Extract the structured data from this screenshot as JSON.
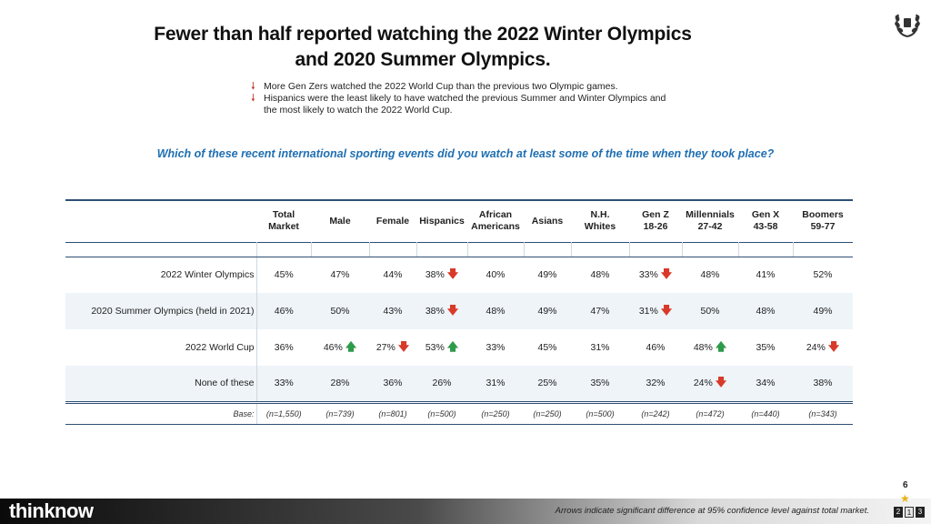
{
  "title_line1": "Fewer than half reported watching the 2022 Winter Olympics",
  "title_line2": "and 2020 Summer Olympics.",
  "bullets": [
    "More Gen Zers watched the 2022 World Cup than the previous two Olympic games.",
    "Hispanics were the least likely to have watched the previous Summer and Winter Olympics and the most likely to watch the 2022 World Cup."
  ],
  "question": "Which of these recent international sporting events did you watch at least some of the time when they took place?",
  "columns": [
    {
      "l1": "Total",
      "l2": "Market"
    },
    {
      "l1": "Male",
      "l2": ""
    },
    {
      "l1": "Female",
      "l2": ""
    },
    {
      "l1": "Hispanics",
      "l2": ""
    },
    {
      "l1": "African",
      "l2": "Americans"
    },
    {
      "l1": "Asians",
      "l2": ""
    },
    {
      "l1": "N.H.",
      "l2": "Whites"
    },
    {
      "l1": "Gen Z",
      "l2": "18-26"
    },
    {
      "l1": "Millennials",
      "l2": "27-42"
    },
    {
      "l1": "Gen X",
      "l2": "43-58"
    },
    {
      "l1": "Boomers",
      "l2": "59-77"
    }
  ],
  "rows": [
    {
      "label": "2022 Winter Olympics",
      "cells": [
        {
          "v": "45%",
          "a": ""
        },
        {
          "v": "47%",
          "a": ""
        },
        {
          "v": "44%",
          "a": ""
        },
        {
          "v": "38%",
          "a": "down"
        },
        {
          "v": "40%",
          "a": ""
        },
        {
          "v": "49%",
          "a": ""
        },
        {
          "v": "48%",
          "a": ""
        },
        {
          "v": "33%",
          "a": "down"
        },
        {
          "v": "48%",
          "a": ""
        },
        {
          "v": "41%",
          "a": ""
        },
        {
          "v": "52%",
          "a": ""
        }
      ]
    },
    {
      "label": "2020 Summer Olympics (held in 2021)",
      "cells": [
        {
          "v": "46%",
          "a": ""
        },
        {
          "v": "50%",
          "a": ""
        },
        {
          "v": "43%",
          "a": ""
        },
        {
          "v": "38%",
          "a": "down"
        },
        {
          "v": "48%",
          "a": ""
        },
        {
          "v": "49%",
          "a": ""
        },
        {
          "v": "47%",
          "a": ""
        },
        {
          "v": "31%",
          "a": "down"
        },
        {
          "v": "50%",
          "a": ""
        },
        {
          "v": "48%",
          "a": ""
        },
        {
          "v": "49%",
          "a": ""
        }
      ]
    },
    {
      "label": "2022 World Cup",
      "cells": [
        {
          "v": "36%",
          "a": ""
        },
        {
          "v": "46%",
          "a": "up"
        },
        {
          "v": "27%",
          "a": "down"
        },
        {
          "v": "53%",
          "a": "up"
        },
        {
          "v": "33%",
          "a": ""
        },
        {
          "v": "45%",
          "a": ""
        },
        {
          "v": "31%",
          "a": ""
        },
        {
          "v": "46%",
          "a": ""
        },
        {
          "v": "48%",
          "a": "up"
        },
        {
          "v": "35%",
          "a": ""
        },
        {
          "v": "24%",
          "a": "down"
        }
      ]
    },
    {
      "label": "None of these",
      "cells": [
        {
          "v": "33%",
          "a": ""
        },
        {
          "v": "28%",
          "a": ""
        },
        {
          "v": "36%",
          "a": ""
        },
        {
          "v": "26%",
          "a": ""
        },
        {
          "v": "31%",
          "a": ""
        },
        {
          "v": "25%",
          "a": ""
        },
        {
          "v": "35%",
          "a": ""
        },
        {
          "v": "32%",
          "a": ""
        },
        {
          "v": "24%",
          "a": "down"
        },
        {
          "v": "34%",
          "a": ""
        },
        {
          "v": "38%",
          "a": ""
        }
      ]
    }
  ],
  "base": {
    "label": "Base:",
    "values": [
      "(n=1,550)",
      "(n=739)",
      "(n=801)",
      "(n=500)",
      "(n=250)",
      "(n=250)",
      "(n=500)",
      "(n=242)",
      "(n=472)",
      "(n=440)",
      "(n=343)"
    ]
  },
  "footer": {
    "brand": "thinknow",
    "footnote": "Arrows indicate significant difference at 95% confidence level against total market.",
    "page_number": "6",
    "nav": [
      "2",
      "1",
      "3"
    ]
  },
  "colors": {
    "question": "#1f6fb2",
    "arrow_down": "#d83a2a",
    "arrow_up": "#2e9a4a",
    "rule": "#2d4f74",
    "shade": "#eef4f8"
  }
}
